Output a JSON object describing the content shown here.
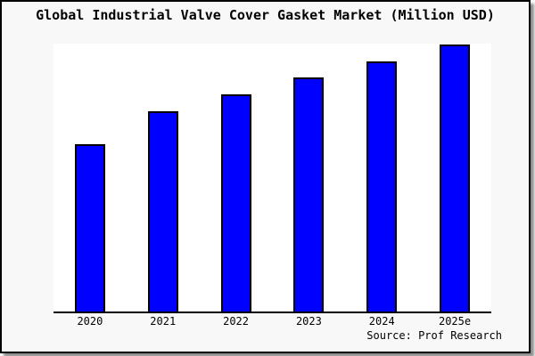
{
  "chart_data": {
    "type": "bar",
    "title": "Global Industrial Valve Cover Gasket Market (Million USD)",
    "categories": [
      "2020",
      "2021",
      "2022",
      "2023",
      "2024",
      "2025e"
    ],
    "values": [
      62.5,
      74.9,
      81.2,
      87.4,
      93.4,
      99.7
    ],
    "xlabel": "",
    "ylabel": "",
    "ylim": [
      0,
      100
    ],
    "grid": false,
    "legend": false,
    "y_axis_labeled": false,
    "note": "no y-axis scale shown; values are relative bar heights with tallest bar = 100",
    "source": "Source: Prof Research"
  },
  "colors": {
    "background": "#f8f8f8",
    "plot_background": "#ffffff",
    "bar_fill": "#0000ff",
    "bar_border": "#000000",
    "axis": "#000000",
    "text": "#000000"
  }
}
